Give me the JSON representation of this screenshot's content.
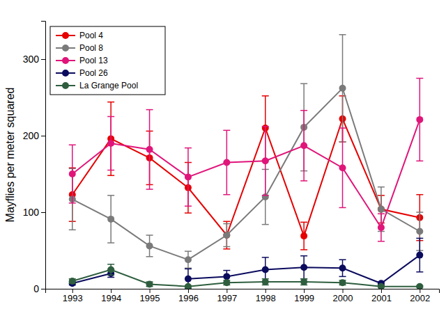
{
  "chart_data": {
    "type": "line",
    "y_label": "Mayflies per meter squared",
    "x": [
      1993,
      1994,
      1995,
      1996,
      1997,
      1998,
      1999,
      2000,
      2001,
      2002
    ],
    "xlim": [
      1992.3,
      2002.5
    ],
    "xticks": [
      1993,
      1994,
      1995,
      1996,
      1997,
      1998,
      1999,
      2000,
      2001,
      2002
    ],
    "ylim": [
      0,
      350
    ],
    "yticks": [
      0,
      100,
      200,
      300
    ],
    "grid": false,
    "legend": "upper left",
    "marker": "circle",
    "series": [
      {
        "name": "Pool 4",
        "color": "#e60000",
        "values": [
          123,
          196,
          171,
          132,
          70,
          210,
          69,
          222,
          104,
          93
        ],
        "errors": [
          35,
          48,
          35,
          33,
          18,
          42,
          18,
          30,
          18,
          30
        ]
      },
      {
        "name": "Pool 8",
        "color": "#7a7a7a",
        "values": [
          117,
          91,
          56,
          38,
          70,
          120,
          211,
          262,
          104,
          75
        ],
        "errors": [
          40,
          31,
          14,
          11,
          15,
          36,
          57,
          70,
          29,
          25
        ]
      },
      {
        "name": "Pool 13",
        "color": "#e0157a",
        "values": [
          150,
          190,
          182,
          146,
          165,
          167,
          187,
          158,
          80,
          221
        ],
        "errors": [
          38,
          35,
          52,
          38,
          42,
          45,
          46,
          52,
          18,
          54
        ]
      },
      {
        "name": "Pool 26",
        "color": "#0b0b5e",
        "values": [
          7,
          20,
          null,
          13,
          16,
          25,
          28,
          27,
          7,
          44
        ],
        "errors": [
          2,
          5,
          null,
          13,
          8,
          16,
          15,
          11,
          2,
          22
        ]
      },
      {
        "name": "La Grange Pool",
        "color": "#2e5e3e",
        "values": [
          10,
          25,
          6,
          3,
          8,
          9,
          9,
          8,
          3,
          3
        ],
        "errors": [
          3,
          7,
          3,
          1,
          3,
          4,
          4,
          3,
          1,
          1
        ]
      }
    ]
  }
}
